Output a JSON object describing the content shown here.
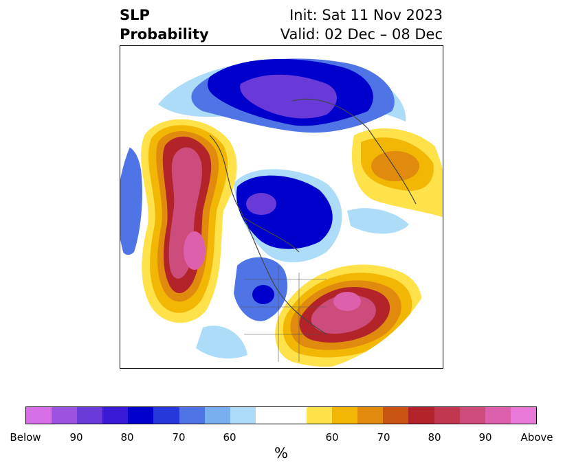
{
  "title": {
    "left_line1": "SLP",
    "left_line2": "Probability",
    "right_line1": "Init: Sat 11 Nov 2023",
    "right_line2": "Valid: 02 Dec – 08 Dec"
  },
  "colorbar": {
    "colors": [
      "#d670e6",
      "#9e52e0",
      "#6a3ad9",
      "#3a1ad6",
      "#0000cc",
      "#2538d9",
      "#4f74e6",
      "#78b0ef",
      "#addcf9",
      "#ffffff",
      "#ffffff",
      "#ffe14a",
      "#f2b705",
      "#e08a0e",
      "#c95414",
      "#b3242a",
      "#c23750",
      "#cc4c7c",
      "#dd60ac",
      "#e879d9"
    ],
    "tick_labels": [
      "Below",
      "90",
      "80",
      "70",
      "60",
      "60",
      "70",
      "80",
      "90",
      "Above"
    ],
    "unit": "%"
  }
}
